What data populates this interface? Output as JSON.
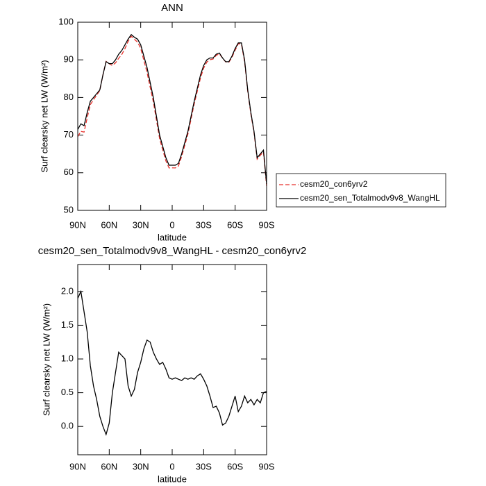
{
  "chart_data": [
    {
      "type": "line",
      "title": "ANN",
      "xlabel": "latitude",
      "ylabel": "Surf clearsky net LW (W/m²)",
      "x": [
        90,
        87,
        84,
        81,
        78,
        75,
        72,
        69,
        66,
        63,
        60,
        57,
        54,
        51,
        48,
        45,
        42,
        39,
        36,
        33,
        30,
        27,
        24,
        21,
        18,
        15,
        12,
        9,
        6,
        3,
        0,
        -3,
        -6,
        -9,
        -12,
        -15,
        -18,
        -21,
        -24,
        -27,
        -30,
        -33,
        -36,
        -39,
        -42,
        -45,
        -48,
        -51,
        -54,
        -57,
        -60,
        -63,
        -66,
        -69,
        -72,
        -75,
        -78,
        -81,
        -84,
        -87,
        -90
      ],
      "series": [
        {
          "name": "cesm20_con6yrv2",
          "color": "#e8322d",
          "line_style": "dashed",
          "values": [
            69.6,
            71.0,
            70.8,
            74.6,
            78.1,
            79.4,
            80.6,
            81.85,
            86,
            89.6,
            88.95,
            88.5,
            89.2,
            90.4,
            91.45,
            93,
            94.9,
            96.25,
            95.45,
            94.7,
            93.05,
            89.85,
            86.72,
            82.75,
            78.9,
            74,
            69.08,
            66.05,
            63.15,
            61.28,
            61.3,
            61.28,
            61.8,
            64.32,
            67.28,
            70.3,
            74.28,
            78.3,
            81.75,
            85.22,
            87.8,
            89.4,
            90.05,
            90.22,
            91.2,
            91.6,
            90.48,
            89.45,
            89.35,
            90.7,
            92.55,
            94.28,
            94.2,
            89.55,
            81.65,
            75.6,
            70.68,
            63.6,
            64.65,
            65.5,
            56.48
          ]
        },
        {
          "name": "cesm20_sen_Totalmodv9v8_WangHL",
          "color": "#000000",
          "line_style": "solid",
          "values": [
            71.5,
            73,
            72.5,
            76,
            79,
            80,
            81,
            82,
            86,
            89.5,
            89,
            89,
            90,
            91.5,
            92.5,
            94,
            95.5,
            96.7,
            96,
            95.5,
            94,
            91,
            88,
            84,
            80,
            75,
            70,
            67,
            64,
            62,
            62,
            62,
            62.5,
            65,
            68,
            71,
            75,
            79,
            82.5,
            86,
            88.5,
            90,
            90.5,
            90.5,
            91.5,
            91.8,
            90.5,
            89.5,
            89.5,
            91,
            93,
            94.5,
            94.5,
            90,
            82,
            76,
            71,
            64,
            65,
            66,
            57
          ]
        }
      ],
      "xlim": [
        90,
        -90
      ],
      "xticks": [
        {
          "value": 90,
          "label": "90N"
        },
        {
          "value": 60,
          "label": "60N"
        },
        {
          "value": 30,
          "label": "30N"
        },
        0,
        {
          "value": -30,
          "label": "30S"
        },
        {
          "value": -60,
          "label": "60S"
        },
        {
          "value": -90,
          "label": "90S"
        }
      ],
      "ylim": [
        50,
        100
      ],
      "yticks": [
        50,
        60,
        70,
        80,
        90,
        100
      ],
      "legend": "right"
    },
    {
      "type": "line",
      "title": "cesm20_sen_Totalmodv9v8_WangHL - cesm20_con6yrv2",
      "xlabel": "latitude",
      "ylabel": "Surf clearsky net LW (W/m²)",
      "x": [
        90,
        87,
        84,
        81,
        78,
        75,
        72,
        69,
        66,
        63,
        60,
        57,
        54,
        51,
        48,
        45,
        42,
        39,
        36,
        33,
        30,
        27,
        24,
        21,
        18,
        15,
        12,
        9,
        6,
        3,
        0,
        -3,
        -6,
        -9,
        -12,
        -15,
        -18,
        -21,
        -24,
        -27,
        -30,
        -33,
        -36,
        -39,
        -42,
        -45,
        -48,
        -51,
        -54,
        -57,
        -60,
        -63,
        -66,
        -69,
        -72,
        -75,
        -78,
        -81,
        -84,
        -87,
        -90
      ],
      "series": [
        {
          "color": "#000000",
          "line_style": "solid",
          "values": [
            1.9,
            2.0,
            1.7,
            1.4,
            0.9,
            0.6,
            0.4,
            0.15,
            0.0,
            -0.12,
            0.05,
            0.5,
            0.8,
            1.1,
            1.05,
            1.0,
            0.6,
            0.45,
            0.55,
            0.8,
            0.95,
            1.15,
            1.28,
            1.25,
            1.1,
            1.0,
            0.92,
            0.95,
            0.85,
            0.72,
            0.7,
            0.72,
            0.7,
            0.68,
            0.72,
            0.7,
            0.72,
            0.7,
            0.75,
            0.78,
            0.7,
            0.6,
            0.45,
            0.28,
            0.3,
            0.2,
            0.02,
            0.05,
            0.15,
            0.3,
            0.45,
            0.22,
            0.3,
            0.45,
            0.35,
            0.4,
            0.32,
            0.4,
            0.35,
            0.5,
            0.52
          ]
        }
      ],
      "xlim": [
        90,
        -90
      ],
      "xticks": [
        {
          "value": 90,
          "label": "90N"
        },
        {
          "value": 60,
          "label": "60N"
        },
        {
          "value": 30,
          "label": "30N"
        },
        0,
        {
          "value": -30,
          "label": "30S"
        },
        {
          "value": -60,
          "label": "60S"
        },
        {
          "value": -90,
          "label": "90S"
        }
      ],
      "ylim": [
        -0.42,
        2.4
      ],
      "yticks": [
        {
          "value": 0,
          "label": "0.0"
        },
        {
          "value": 0.5,
          "label": "0.5"
        },
        {
          "value": 1,
          "label": "1.0"
        },
        {
          "value": 1.5,
          "label": "1.5"
        },
        {
          "value": 2,
          "label": "2.0"
        }
      ]
    }
  ]
}
